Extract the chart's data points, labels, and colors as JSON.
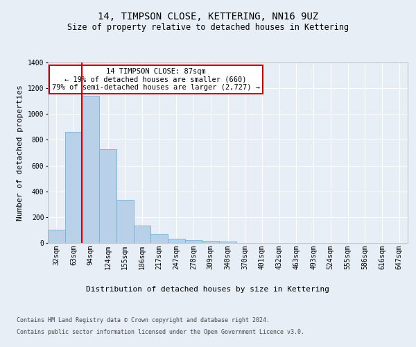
{
  "title": "14, TIMPSON CLOSE, KETTERING, NN16 9UZ",
  "subtitle": "Size of property relative to detached houses in Kettering",
  "xlabel": "Distribution of detached houses by size in Kettering",
  "ylabel": "Number of detached properties",
  "categories": [
    "32sqm",
    "63sqm",
    "94sqm",
    "124sqm",
    "155sqm",
    "186sqm",
    "217sqm",
    "247sqm",
    "278sqm",
    "309sqm",
    "340sqm",
    "370sqm",
    "401sqm",
    "432sqm",
    "463sqm",
    "493sqm",
    "524sqm",
    "555sqm",
    "586sqm",
    "616sqm",
    "647sqm"
  ],
  "values": [
    103,
    860,
    1140,
    728,
    335,
    133,
    68,
    30,
    20,
    15,
    13,
    0,
    0,
    0,
    0,
    0,
    0,
    0,
    0,
    0,
    0
  ],
  "bar_color": "#b8d0e8",
  "bar_edge_color": "#7aafd4",
  "vline_color": "#cc0000",
  "annotation_text": "14 TIMPSON CLOSE: 87sqm\n← 19% of detached houses are smaller (660)\n79% of semi-detached houses are larger (2,727) →",
  "annotation_box_facecolor": "#ffffff",
  "annotation_box_edgecolor": "#cc0000",
  "ylim": [
    0,
    1400
  ],
  "yticks": [
    0,
    200,
    400,
    600,
    800,
    1000,
    1200,
    1400
  ],
  "bg_color": "#e8eef5",
  "axes_bg_color": "#e8eef5",
  "grid_color": "#ffffff",
  "footer_line1": "Contains HM Land Registry data © Crown copyright and database right 2024.",
  "footer_line2": "Contains public sector information licensed under the Open Government Licence v3.0.",
  "title_fontsize": 10,
  "subtitle_fontsize": 8.5,
  "tick_fontsize": 7,
  "label_fontsize": 8,
  "annotation_fontsize": 7.5,
  "footer_fontsize": 6
}
